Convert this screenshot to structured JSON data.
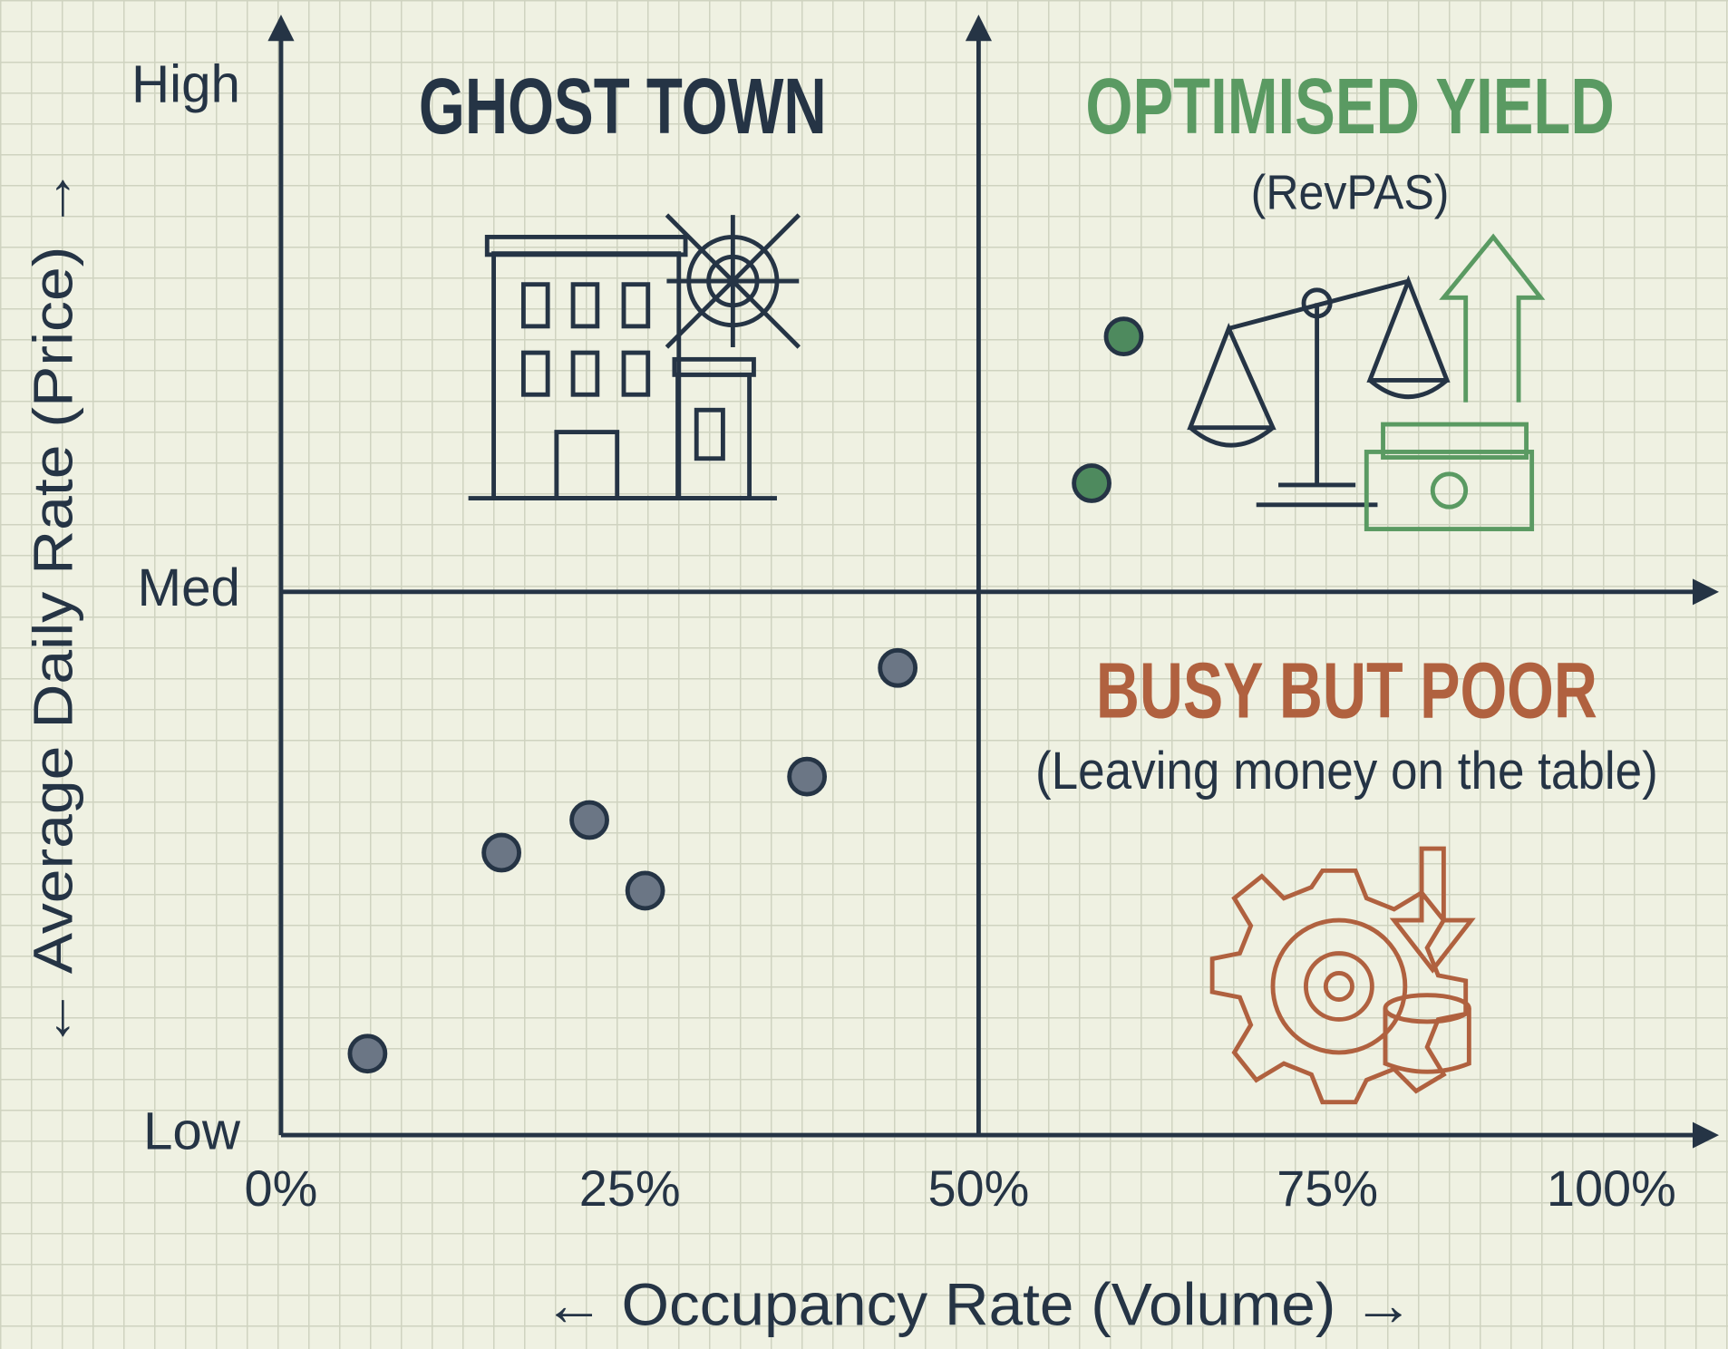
{
  "chart_data": {
    "type": "scatter",
    "x_label": "← Occupancy Rate (Volume) →",
    "y_label": "← Average Daily Rate (Price) →",
    "x": [
      6.2,
      15.8,
      22.1,
      26.1,
      37.7,
      44.2,
      60.4,
      58.1
    ],
    "values": [
      0.15,
      0.52,
      0.58,
      0.45,
      0.66,
      0.86,
      1.47,
      1.2
    ],
    "colors": [
      "#6b7685",
      "#6b7685",
      "#6b7685",
      "#6b7685",
      "#6b7685",
      "#6b7685",
      "#4e8a5e",
      "#4e8a5e"
    ],
    "xlim": [
      0,
      100
    ],
    "xticks": [
      {
        "value": 0,
        "label": "0%"
      },
      {
        "value": 25,
        "label": "25%"
      },
      {
        "value": 50,
        "label": "50%"
      },
      {
        "value": 75,
        "label": "75%"
      },
      {
        "value": 100,
        "label": "100%"
      }
    ],
    "ylim": [
      0,
      2
    ],
    "yticks": [
      {
        "value": 0,
        "label": "Low"
      },
      {
        "value": 1,
        "label": "Med"
      },
      {
        "value": 2,
        "label": "High"
      }
    ],
    "annotations": [
      {
        "text": "GHOST TOWN",
        "color": "#253445"
      },
      {
        "text": "OPTIMISED YIELD",
        "color": "#5a9a62"
      },
      {
        "text": "(RevPAS)",
        "color": "#253445"
      },
      {
        "text": "BUSY BUT POOR",
        "color": "#b0613f"
      },
      {
        "text": "(Leaving money on the table)",
        "color": "#253445"
      }
    ]
  }
}
